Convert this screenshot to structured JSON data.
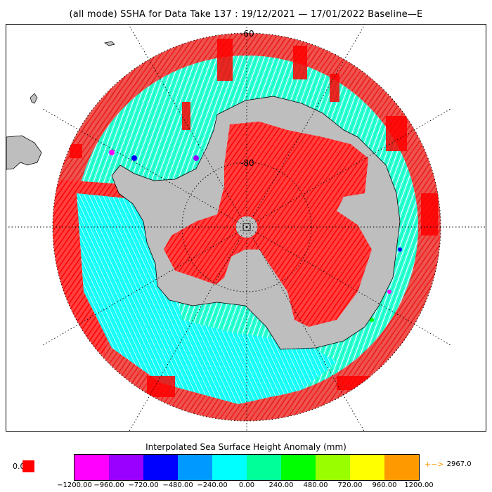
{
  "title": "(all mode) SSHA for Data Take 137 : 19/12/2021 — 17/01/2022 Baseline—E",
  "map": {
    "projection": "south-polar-stereographic",
    "lat_labels": [
      "-60",
      "-80"
    ],
    "colors": {
      "land": "#bebebe",
      "ice_high": "#ff0000",
      "ocean_fill": "#00ffff"
    }
  },
  "colorbar": {
    "title": "Interpolated Sea Surface Height Anomaly (mm)",
    "colors": [
      "#ff00ff",
      "#9900ff",
      "#0000ff",
      "#0099ff",
      "#00ffff",
      "#00ff99",
      "#00ff00",
      "#99ff00",
      "#ffff00",
      "#ff9900"
    ],
    "ticks": [
      "−1200.00",
      "−960.00",
      "−720.00",
      "−480.00",
      "−240.00",
      "0.00",
      "240.00",
      "480.00",
      "720.00",
      "960.00",
      "1200.00"
    ],
    "no_data_label": "0.0",
    "no_data_color": "#ff0000",
    "overflow_label": "2967.0",
    "overflow_arrow": "+−>"
  }
}
